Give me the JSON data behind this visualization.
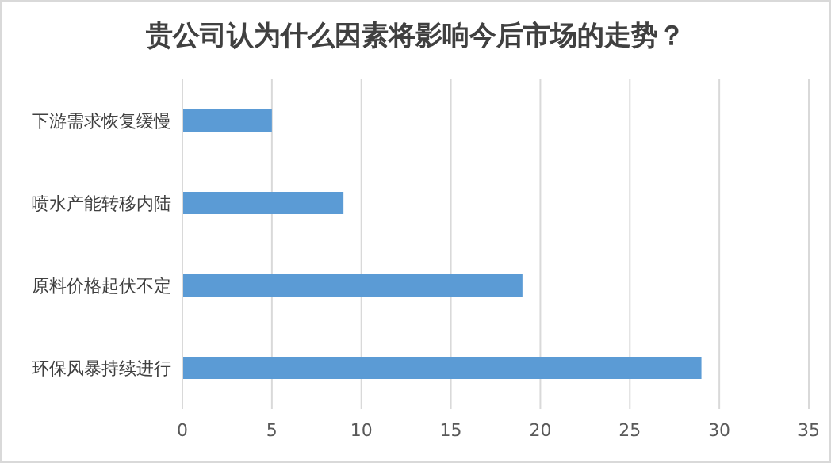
{
  "chart_data": {
    "type": "bar",
    "orientation": "horizontal",
    "title": "贵公司认为什么因素将影响今后市场的走势？",
    "categories": [
      "下游需求恢复缓慢",
      "喷水产能转移内陆",
      "原料价格起伏不定",
      "环保风暴持续进行"
    ],
    "values": [
      5,
      9,
      19,
      29
    ],
    "color": "#5b9bd5",
    "xlim": [
      0,
      35
    ],
    "xticks": [
      0,
      5,
      10,
      15,
      20,
      25,
      30,
      35
    ],
    "grid": "x"
  }
}
